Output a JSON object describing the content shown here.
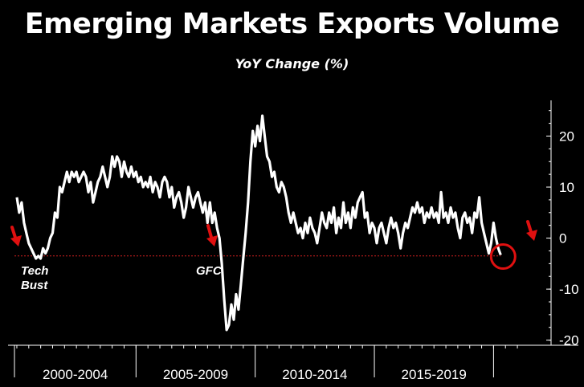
{
  "title": "Emerging Markets Exports Volume",
  "subtitle": "YoY Change (%)",
  "colors": {
    "background": "#000000",
    "series": "#ffffff",
    "threshold": "#d22020",
    "annotation_arrow": "#e01010",
    "circle": "#e01010"
  },
  "chart_data": {
    "type": "line",
    "title": "Emerging Markets Exports Volume",
    "subtitle": "YoY Change (%)",
    "xlabel": "",
    "ylabel": "",
    "x_range": [
      1999.9,
      2021.2
    ],
    "ylim": [
      -21,
      27
    ],
    "y_ticks": [
      20,
      10,
      0,
      -10,
      -20
    ],
    "y_axis_position": "right",
    "grid": false,
    "x_periods": [
      {
        "label": "2000-2004",
        "start": 1999.9,
        "end": 2005.0
      },
      {
        "label": "2005-2009",
        "start": 2005.0,
        "end": 2010.0
      },
      {
        "label": "2010-2014",
        "start": 2010.0,
        "end": 2015.0
      },
      {
        "label": "2015-2019",
        "start": 2015.0,
        "end": 2020.0
      }
    ],
    "threshold": {
      "y": -3.5,
      "style": "dashed"
    },
    "annotations": [
      {
        "text": "Tech\nBust",
        "x": 2001.1
      },
      {
        "text": "GFC",
        "x": 2008.0
      }
    ],
    "highlight_point": {
      "x": 2020.3,
      "y": -3.3
    },
    "series": [
      {
        "values": [
          [
            2000.0,
            8
          ],
          [
            2000.1,
            5
          ],
          [
            2000.2,
            7
          ],
          [
            2000.3,
            3
          ],
          [
            2000.4,
            1
          ],
          [
            2000.5,
            -1
          ],
          [
            2000.6,
            -2
          ],
          [
            2000.7,
            -3
          ],
          [
            2000.8,
            -4
          ],
          [
            2000.9,
            -3.5
          ],
          [
            2001.0,
            -4
          ],
          [
            2001.1,
            -2
          ],
          [
            2001.2,
            -3
          ],
          [
            2001.3,
            -2
          ],
          [
            2001.4,
            0
          ],
          [
            2001.5,
            1
          ],
          [
            2001.6,
            5
          ],
          [
            2001.7,
            4
          ],
          [
            2001.8,
            10
          ],
          [
            2001.9,
            9
          ],
          [
            2002.0,
            11
          ],
          [
            2002.1,
            13
          ],
          [
            2002.2,
            11
          ],
          [
            2002.3,
            13
          ],
          [
            2002.4,
            12
          ],
          [
            2002.5,
            13
          ],
          [
            2002.6,
            11
          ],
          [
            2002.7,
            12
          ],
          [
            2002.8,
            13
          ],
          [
            2002.9,
            12
          ],
          [
            2003.0,
            9
          ],
          [
            2003.1,
            11
          ],
          [
            2003.2,
            7
          ],
          [
            2003.3,
            9
          ],
          [
            2003.4,
            11
          ],
          [
            2003.5,
            12
          ],
          [
            2003.6,
            14
          ],
          [
            2003.7,
            12
          ],
          [
            2003.8,
            10
          ],
          [
            2003.9,
            12
          ],
          [
            2004.0,
            16
          ],
          [
            2004.1,
            14
          ],
          [
            2004.2,
            16
          ],
          [
            2004.3,
            15
          ],
          [
            2004.4,
            12
          ],
          [
            2004.5,
            15
          ],
          [
            2004.6,
            13
          ],
          [
            2004.7,
            12
          ],
          [
            2004.8,
            14
          ],
          [
            2004.9,
            12
          ],
          [
            2005.0,
            13
          ],
          [
            2005.1,
            11
          ],
          [
            2005.2,
            12
          ],
          [
            2005.3,
            10
          ],
          [
            2005.4,
            11
          ],
          [
            2005.5,
            10
          ],
          [
            2005.6,
            12
          ],
          [
            2005.7,
            9
          ],
          [
            2005.8,
            11
          ],
          [
            2005.9,
            10
          ],
          [
            2006.0,
            8
          ],
          [
            2006.1,
            11
          ],
          [
            2006.2,
            12
          ],
          [
            2006.3,
            11
          ],
          [
            2006.4,
            8
          ],
          [
            2006.5,
            10
          ],
          [
            2006.6,
            6
          ],
          [
            2006.7,
            8
          ],
          [
            2006.8,
            9
          ],
          [
            2006.9,
            7
          ],
          [
            2007.0,
            4
          ],
          [
            2007.1,
            6
          ],
          [
            2007.2,
            10
          ],
          [
            2007.3,
            8
          ],
          [
            2007.4,
            6
          ],
          [
            2007.5,
            8
          ],
          [
            2007.6,
            9
          ],
          [
            2007.7,
            7
          ],
          [
            2007.8,
            5
          ],
          [
            2007.9,
            7
          ],
          [
            2008.0,
            3
          ],
          [
            2008.1,
            7
          ],
          [
            2008.2,
            3
          ],
          [
            2008.3,
            5
          ],
          [
            2008.4,
            2
          ],
          [
            2008.5,
            0
          ],
          [
            2008.6,
            -5
          ],
          [
            2008.7,
            -12
          ],
          [
            2008.8,
            -18
          ],
          [
            2008.9,
            -17
          ],
          [
            2009.0,
            -13
          ],
          [
            2009.1,
            -16
          ],
          [
            2009.2,
            -11
          ],
          [
            2009.3,
            -14
          ],
          [
            2009.4,
            -9
          ],
          [
            2009.5,
            -4
          ],
          [
            2009.6,
            1
          ],
          [
            2009.7,
            7
          ],
          [
            2009.8,
            15
          ],
          [
            2009.9,
            21
          ],
          [
            2010.0,
            18
          ],
          [
            2010.1,
            22
          ],
          [
            2010.2,
            19
          ],
          [
            2010.3,
            24
          ],
          [
            2010.4,
            20
          ],
          [
            2010.5,
            16
          ],
          [
            2010.6,
            15
          ],
          [
            2010.7,
            12
          ],
          [
            2010.8,
            13
          ],
          [
            2010.9,
            10
          ],
          [
            2011.0,
            9
          ],
          [
            2011.1,
            11
          ],
          [
            2011.2,
            10
          ],
          [
            2011.3,
            8
          ],
          [
            2011.4,
            5
          ],
          [
            2011.5,
            3
          ],
          [
            2011.6,
            5
          ],
          [
            2011.7,
            3
          ],
          [
            2011.8,
            1
          ],
          [
            2011.9,
            2
          ],
          [
            2012.0,
            0
          ],
          [
            2012.1,
            3
          ],
          [
            2012.2,
            1
          ],
          [
            2012.3,
            4
          ],
          [
            2012.4,
            2
          ],
          [
            2012.5,
            1
          ],
          [
            2012.6,
            -1
          ],
          [
            2012.7,
            2
          ],
          [
            2012.8,
            5
          ],
          [
            2012.9,
            3
          ],
          [
            2013.0,
            2
          ],
          [
            2013.1,
            5
          ],
          [
            2013.2,
            3
          ],
          [
            2013.3,
            6
          ],
          [
            2013.4,
            1
          ],
          [
            2013.5,
            4
          ],
          [
            2013.6,
            2
          ],
          [
            2013.7,
            7
          ],
          [
            2013.8,
            3
          ],
          [
            2013.9,
            5
          ],
          [
            2014.0,
            2
          ],
          [
            2014.1,
            6
          ],
          [
            2014.2,
            4
          ],
          [
            2014.3,
            7
          ],
          [
            2014.4,
            8
          ],
          [
            2014.5,
            9
          ],
          [
            2014.6,
            4
          ],
          [
            2014.7,
            5
          ],
          [
            2014.8,
            1
          ],
          [
            2014.9,
            3
          ],
          [
            2015.0,
            2
          ],
          [
            2015.1,
            -1
          ],
          [
            2015.2,
            2
          ],
          [
            2015.3,
            3
          ],
          [
            2015.4,
            1
          ],
          [
            2015.5,
            -1
          ],
          [
            2015.6,
            2
          ],
          [
            2015.7,
            4
          ],
          [
            2015.8,
            2
          ],
          [
            2015.9,
            3
          ],
          [
            2016.0,
            1
          ],
          [
            2016.1,
            -2
          ],
          [
            2016.2,
            1
          ],
          [
            2016.3,
            3
          ],
          [
            2016.4,
            2
          ],
          [
            2016.5,
            4
          ],
          [
            2016.6,
            6
          ],
          [
            2016.7,
            5
          ],
          [
            2016.8,
            7
          ],
          [
            2016.9,
            5
          ],
          [
            2017.0,
            6
          ],
          [
            2017.1,
            3
          ],
          [
            2017.2,
            5
          ],
          [
            2017.3,
            4
          ],
          [
            2017.4,
            6
          ],
          [
            2017.5,
            4
          ],
          [
            2017.6,
            5
          ],
          [
            2017.7,
            3
          ],
          [
            2017.8,
            9
          ],
          [
            2017.9,
            4
          ],
          [
            2018.0,
            5
          ],
          [
            2018.1,
            3
          ],
          [
            2018.2,
            6
          ],
          [
            2018.3,
            4
          ],
          [
            2018.4,
            5
          ],
          [
            2018.5,
            2
          ],
          [
            2018.6,
            0
          ],
          [
            2018.7,
            4
          ],
          [
            2018.8,
            5
          ],
          [
            2018.9,
            3
          ],
          [
            2019.0,
            4
          ],
          [
            2019.1,
            1
          ],
          [
            2019.2,
            5
          ],
          [
            2019.3,
            4
          ],
          [
            2019.4,
            8
          ],
          [
            2019.5,
            3
          ],
          [
            2019.6,
            1
          ],
          [
            2019.7,
            -1
          ],
          [
            2019.8,
            -3
          ],
          [
            2019.9,
            -1
          ],
          [
            2020.0,
            3
          ],
          [
            2020.1,
            0
          ],
          [
            2020.2,
            -2
          ],
          [
            2020.3,
            -3.3
          ]
        ]
      }
    ]
  }
}
